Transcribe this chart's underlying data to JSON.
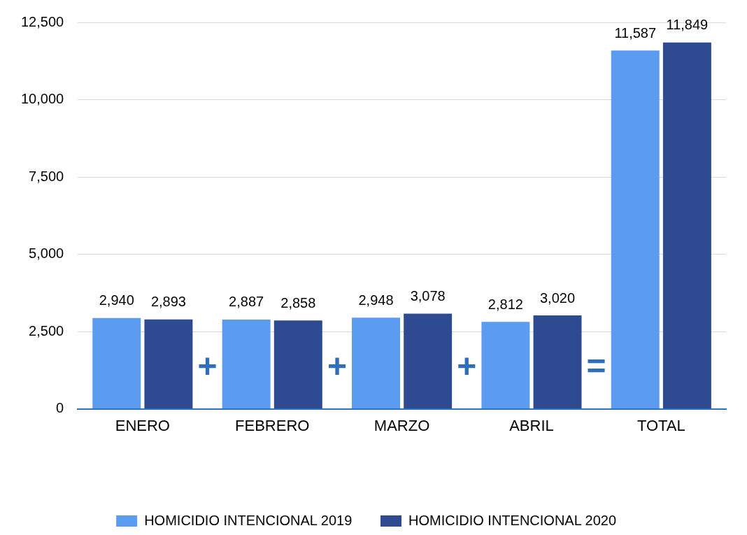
{
  "chart_data": {
    "type": "bar",
    "categories": [
      "ENERO",
      "FEBRERO",
      "MARZO",
      "ABRIL",
      "TOTAL"
    ],
    "series": [
      {
        "name": "HOMICIDIO INTENCIONAL 2019",
        "color": "#5b9bf0",
        "values": [
          2940,
          2887,
          2948,
          2812,
          11587
        ],
        "value_labels": [
          "2,940",
          "2,887",
          "2,948",
          "2,812",
          "11,587"
        ]
      },
      {
        "name": "HOMICIDIO INTENCIONAL 2020",
        "color": "#2e4a91",
        "values": [
          2893,
          2858,
          3078,
          3020,
          11849
        ],
        "value_labels": [
          "2,893",
          "2,858",
          "3,078",
          "3,020",
          "11,849"
        ]
      }
    ],
    "ylim": [
      0,
      12500
    ],
    "yticks": [
      {
        "value": 0,
        "label": "0"
      },
      {
        "value": 2500,
        "label": "2,500"
      },
      {
        "value": 5000,
        "label": "5,000"
      },
      {
        "value": 7500,
        "label": "7,500"
      },
      {
        "value": 10000,
        "label": "10,000"
      },
      {
        "value": 12500,
        "label": "12,500"
      }
    ],
    "grid": "y",
    "legend": "bottom",
    "annotations": [
      "+",
      "+",
      "+",
      "="
    ]
  }
}
